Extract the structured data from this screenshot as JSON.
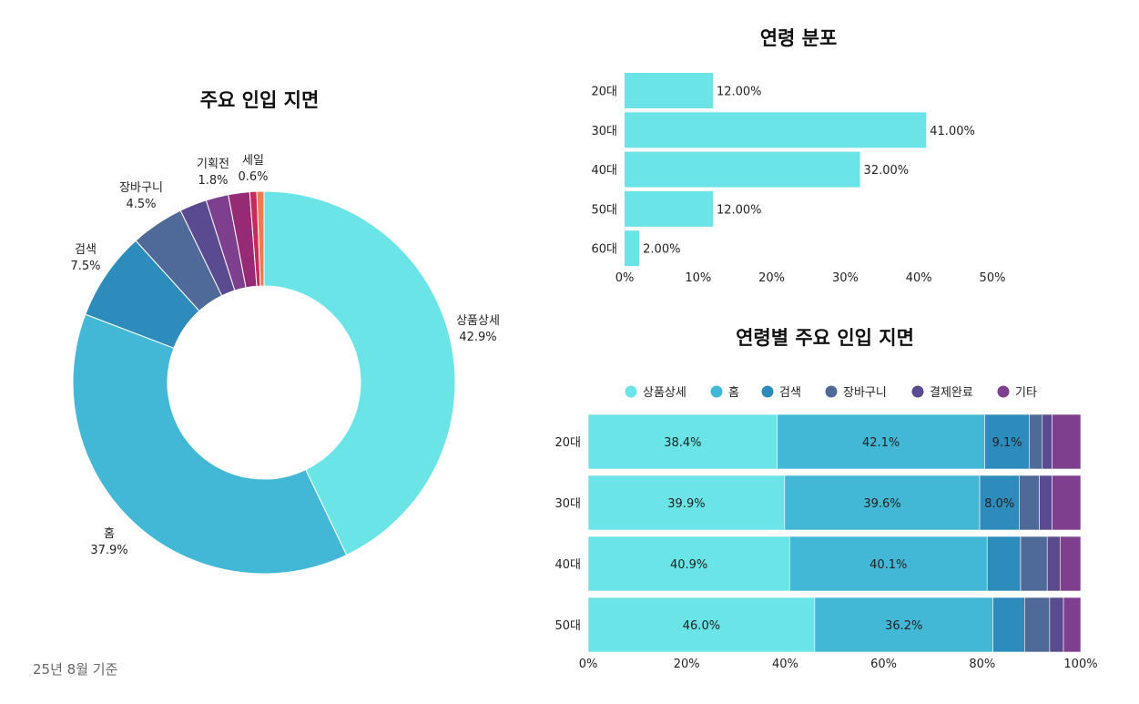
{
  "footnote": "25년 8월 기준",
  "chart_data": [
    {
      "type": "pie",
      "title": "주요 인입 지면",
      "donut": true,
      "slices": [
        {
          "label": "상품상세",
          "value": 42.9,
          "display": "42.9%",
          "color": "#6be4e8"
        },
        {
          "label": "홈",
          "value": 37.9,
          "display": "37.9%",
          "color": "#42b8d6"
        },
        {
          "label": "검색",
          "value": 7.5,
          "display": "7.5%",
          "color": "#2d8cbb"
        },
        {
          "label": "장바구니",
          "value": 4.5,
          "display": "4.5%",
          "color": "#4f6999"
        },
        {
          "label": "",
          "value": 2.3,
          "display": "",
          "color": "#5a4a8f"
        },
        {
          "label": "",
          "value": 1.9,
          "display": "",
          "color": "#7d3f8e"
        },
        {
          "label": "기획전",
          "value": 1.8,
          "display": "1.8%",
          "color": "#962a74"
        },
        {
          "label": "",
          "value": 0.6,
          "display": "",
          "color": "#c82a5c"
        },
        {
          "label": "세일",
          "value": 0.6,
          "display": "0.6%",
          "color": "#f07a4a"
        }
      ]
    },
    {
      "type": "bar",
      "orientation": "horizontal",
      "title": "연령 분포",
      "categories": [
        "20대",
        "30대",
        "40대",
        "50대",
        "60대"
      ],
      "values": [
        12.0,
        41.0,
        32.0,
        12.0,
        2.0
      ],
      "labels": [
        "12.00%",
        "41.00%",
        "32.00%",
        "12.00%",
        "2.00%"
      ],
      "xlim": [
        0,
        50
      ],
      "xticks": [
        "0%",
        "10%",
        "20%",
        "30%",
        "40%",
        "50%"
      ],
      "color": "#6be4e8"
    },
    {
      "type": "bar",
      "orientation": "horizontal",
      "stacked": true,
      "title": "연령별 주요 인입 지면",
      "categories": [
        "20대",
        "30대",
        "40대",
        "50대"
      ],
      "xlim": [
        0,
        100
      ],
      "xticks": [
        "0%",
        "20%",
        "40%",
        "60%",
        "80%",
        "100%"
      ],
      "legend_position": "top",
      "series": [
        {
          "name": "상품상세",
          "color": "#6be4e8",
          "values": [
            38.4,
            39.9,
            40.9,
            46.0
          ],
          "labels": [
            "38.4%",
            "39.9%",
            "40.9%",
            "46.0%"
          ]
        },
        {
          "name": "홈",
          "color": "#42b8d6",
          "values": [
            42.1,
            39.6,
            40.1,
            36.2
          ],
          "labels": [
            "42.1%",
            "39.6%",
            "40.1%",
            "36.2%"
          ]
        },
        {
          "name": "검색",
          "color": "#2d8cbb",
          "values": [
            9.1,
            8.0,
            6.8,
            6.4
          ],
          "labels": [
            "9.1%",
            "8.0%",
            "",
            ""
          ]
        },
        {
          "name": "장바구니",
          "color": "#4f6999",
          "values": [
            2.6,
            4.1,
            5.4,
            5.1
          ],
          "labels": [
            "",
            "",
            "",
            ""
          ]
        },
        {
          "name": "결제완료",
          "color": "#5a4a8f",
          "values": [
            2.0,
            2.6,
            2.6,
            2.8
          ],
          "labels": [
            "",
            "",
            "",
            ""
          ]
        },
        {
          "name": "기타",
          "color": "#7d3f8e",
          "values": [
            5.8,
            5.8,
            4.2,
            3.5
          ],
          "labels": [
            "",
            "",
            "",
            ""
          ]
        }
      ]
    }
  ]
}
